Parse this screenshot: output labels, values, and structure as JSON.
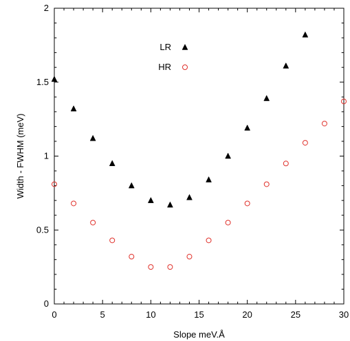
{
  "chart_data": {
    "type": "scatter",
    "title": "",
    "xlabel": "Slope meV.Å",
    "ylabel": "Width - FWHM (meV)",
    "xlim": [
      0,
      30
    ],
    "ylim": [
      0,
      2
    ],
    "xticks": [
      "0",
      "5",
      "10",
      "15",
      "20",
      "25",
      "30"
    ],
    "yticks": [
      "0",
      "0.5",
      "1",
      "1.5",
      "2"
    ],
    "grid": false,
    "legend_position": "top-center",
    "series": [
      {
        "name": "LR",
        "marker": "filled-triangle",
        "color": "#000000",
        "x": [
          0,
          2,
          4,
          6,
          8,
          10,
          12,
          14,
          16,
          18,
          20,
          22,
          24,
          26
        ],
        "y": [
          1.52,
          1.32,
          1.12,
          0.95,
          0.8,
          0.7,
          0.67,
          0.72,
          0.84,
          1.0,
          1.19,
          1.39,
          1.61,
          1.82
        ]
      },
      {
        "name": "HR",
        "marker": "open-circle",
        "color": "#e0302a",
        "x": [
          0,
          2,
          4,
          6,
          8,
          10,
          12,
          14,
          16,
          18,
          20,
          22,
          24,
          26,
          28,
          30
        ],
        "y": [
          0.81,
          0.68,
          0.55,
          0.43,
          0.32,
          0.25,
          0.25,
          0.32,
          0.43,
          0.55,
          0.68,
          0.81,
          0.95,
          1.09,
          1.22,
          1.37
        ]
      }
    ]
  }
}
